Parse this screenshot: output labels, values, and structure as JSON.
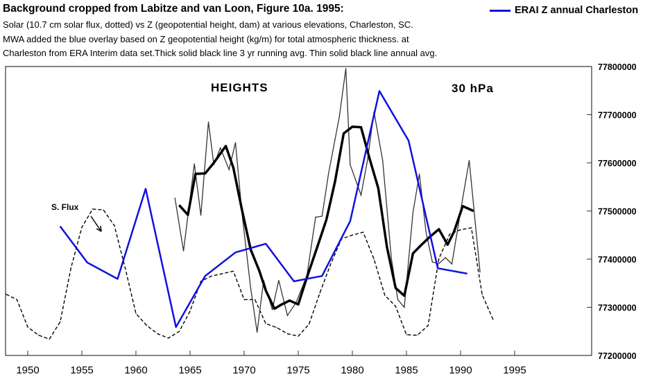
{
  "header": {
    "title": "Background cropped from Labitze and van Loon, Figure 10a. 1995:",
    "line1": "Solar (10.7 cm solar flux, dotted) vs Z (geopotential height, dam) at various elevations, Charleston, SC.",
    "line2": "MWA added the blue overlay based on Z geopotential height  (kg/m) for total atmospheric thickness. at",
    "line3": "Charleston from ERA Interim data set.Thick solid black line 3 yr running avg.  Thin solid black line annual avg."
  },
  "legend": {
    "label": "ERAI Z annual Charleston",
    "color": "#1010e0"
  },
  "chart_data": {
    "type": "line",
    "panel_labels": {
      "left": "HEIGHTS",
      "right": "30 hPa"
    },
    "annotation": "S. Flux",
    "x_ticks": [
      1950,
      1955,
      1960,
      1965,
      1970,
      1975,
      1980,
      1985,
      1990,
      1995
    ],
    "xlim": [
      1948,
      1996
    ],
    "y_ticks": [
      "77200000",
      "77300000",
      "77400000",
      "77500000",
      "77600000",
      "77700000",
      "77800000"
    ],
    "ylim": [
      77200000,
      77800000
    ],
    "grid": false,
    "series": [
      {
        "name": "ERAI Z annual Charleston",
        "style": "blue-solid",
        "color": "#1010e0",
        "x": [
          1953,
          1955.5,
          1958.3,
          1960.9,
          1963.7,
          1966.4,
          1969.2,
          1972,
          1974.6,
          1977.2,
          1979.8,
          1982.5,
          1985.2,
          1987.9,
          1990.6
        ],
        "y": [
          77468000,
          77393000,
          77359000,
          77546000,
          77259000,
          77365000,
          77414000,
          77432000,
          77354000,
          77365000,
          77479000,
          77749000,
          77646000,
          77381000,
          77370000
        ]
      },
      {
        "name": "S. Flux",
        "style": "dashed",
        "color": "#000000",
        "x": [
          1948,
          1949,
          1950,
          1951,
          1952,
          1953,
          1954,
          1955,
          1956,
          1957,
          1958,
          1959,
          1960,
          1961,
          1962,
          1963,
          1964,
          1965,
          1966,
          1967,
          1968,
          1969,
          1970,
          1971,
          1972,
          1973,
          1974,
          1975,
          1976,
          1977,
          1978,
          1979,
          1980,
          1981,
          1982,
          1983,
          1984,
          1985,
          1986,
          1987,
          1988,
          1989,
          1990,
          1991,
          1992,
          1993
        ],
        "y": [
          77327000,
          77316000,
          77259000,
          77242000,
          77234000,
          77270000,
          77382000,
          77466000,
          77504000,
          77502000,
          77470000,
          77382000,
          77287000,
          77262000,
          77245000,
          77236000,
          77250000,
          77292000,
          77354000,
          77365000,
          77370000,
          77375000,
          77316000,
          77316000,
          77266000,
          77258000,
          77245000,
          77240000,
          77265000,
          77330000,
          77390000,
          77442000,
          77450000,
          77456000,
          77400000,
          77325000,
          77302000,
          77243000,
          77242000,
          77262000,
          77401000,
          77452000,
          77461000,
          77465000,
          77326000,
          77275000
        ]
      },
      {
        "name": "Annual avg (thin)",
        "style": "thin-solid",
        "color": "#333333",
        "x": [
          1963.6,
          1964.4,
          1965.4,
          1966,
          1966.7,
          1967.2,
          1967.8,
          1968.6,
          1969.2,
          1969.8,
          1970.6,
          1971.2,
          1971.8,
          1972.6,
          1973.2,
          1974,
          1974.8,
          1975.8,
          1976.6,
          1977.2,
          1977.8,
          1978.8,
          1979.4,
          1979.8,
          1980.8,
          1981.4,
          1982,
          1982.8,
          1983.6,
          1984.2,
          1984.8,
          1985.6,
          1986.2,
          1986.8,
          1987.4,
          1988,
          1988.6,
          1989.2,
          1990.2,
          1990.8,
          1991.8
        ],
        "y": [
          77527000,
          77417000,
          77598000,
          77491000,
          77685000,
          77596000,
          77631000,
          77586000,
          77642000,
          77495000,
          77340000,
          77248000,
          77356000,
          77295000,
          77356000,
          77283000,
          77310000,
          77366000,
          77487000,
          77489000,
          77578000,
          77696000,
          77796000,
          77596000,
          77533000,
          77605000,
          77706000,
          77605000,
          77402000,
          77316000,
          77300000,
          77497000,
          77577000,
          77457000,
          77394000,
          77391000,
          77403000,
          77390000,
          77526000,
          77605000,
          77373000
        ]
      },
      {
        "name": "3 yr running avg (thick)",
        "style": "thick-solid",
        "color": "#000000",
        "x": [
          1964,
          1964.8,
          1965.5,
          1966.4,
          1967.2,
          1968.3,
          1969,
          1969.8,
          1970.6,
          1971.4,
          1972,
          1972.8,
          1973.4,
          1974.2,
          1975,
          1975.8,
          1976.8,
          1977.6,
          1978.4,
          1979.2,
          1980,
          1980.8,
          1981.6,
          1982.4,
          1983.2,
          1984,
          1984.8,
          1985.6,
          1986.4,
          1987.2,
          1988,
          1988.8,
          1989.4,
          1990.2,
          1991.2
        ],
        "y": [
          77512000,
          77492000,
          77577000,
          77578000,
          77600000,
          77635000,
          77590000,
          77502000,
          77420000,
          77376000,
          77335000,
          77297000,
          77305000,
          77314000,
          77306000,
          77362000,
          77428000,
          77482000,
          77561000,
          77661000,
          77675000,
          77674000,
          77608000,
          77547000,
          77425000,
          77340000,
          77324000,
          77412000,
          77430000,
          77447000,
          77462000,
          77430000,
          77457000,
          77510000,
          77500000
        ]
      }
    ]
  }
}
